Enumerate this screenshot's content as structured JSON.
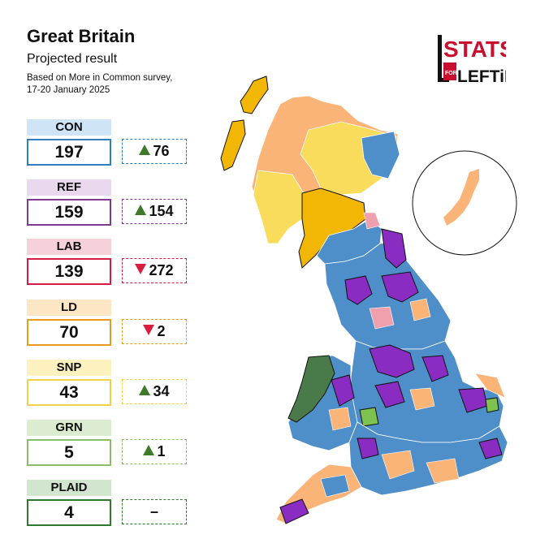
{
  "header": {
    "title": "Great Britain",
    "subtitle": "Projected result",
    "note": "Based on More in Common survey, 17-20 January 2025"
  },
  "logo": {
    "line1": "STATS",
    "line2_small": "FOR",
    "line2": "LEFTiES"
  },
  "parties": [
    {
      "name": "CON",
      "seats": "197",
      "change": "76",
      "direction": "up",
      "color": "#2f7ec0",
      "light": "#cfe4f6"
    },
    {
      "name": "REF",
      "seats": "159",
      "change": "154",
      "direction": "up",
      "color": "#7e3c90",
      "light": "#ead9ee"
    },
    {
      "name": "LAB",
      "seats": "139",
      "change": "272",
      "direction": "down",
      "color": "#d41c44",
      "light": "#f7d1d9"
    },
    {
      "name": "LD",
      "seats": "70",
      "change": "2",
      "direction": "down",
      "color": "#eb9b1c",
      "light": "#fde6c6"
    },
    {
      "name": "SNP",
      "seats": "43",
      "change": "34",
      "direction": "up",
      "color": "#efd247",
      "light": "#fcf1bf"
    },
    {
      "name": "GRN",
      "seats": "5",
      "change": "1",
      "direction": "up",
      "color": "#8ebd6a",
      "light": "#dcecd0"
    },
    {
      "name": "PLAID",
      "seats": "4",
      "change": "–",
      "direction": "none",
      "color": "#2f7a2f",
      "light": "#d2e5cf"
    }
  ],
  "map_colors": {
    "con": "#4f8fc9",
    "ref": "#8a2bc2",
    "lab": "#f0a0ad",
    "ld": "#fbb478",
    "snp": "#f9dc5c",
    "snp_gold": "#f2b705",
    "grn": "#7ec24f",
    "plaid": "#4a7a4a"
  }
}
